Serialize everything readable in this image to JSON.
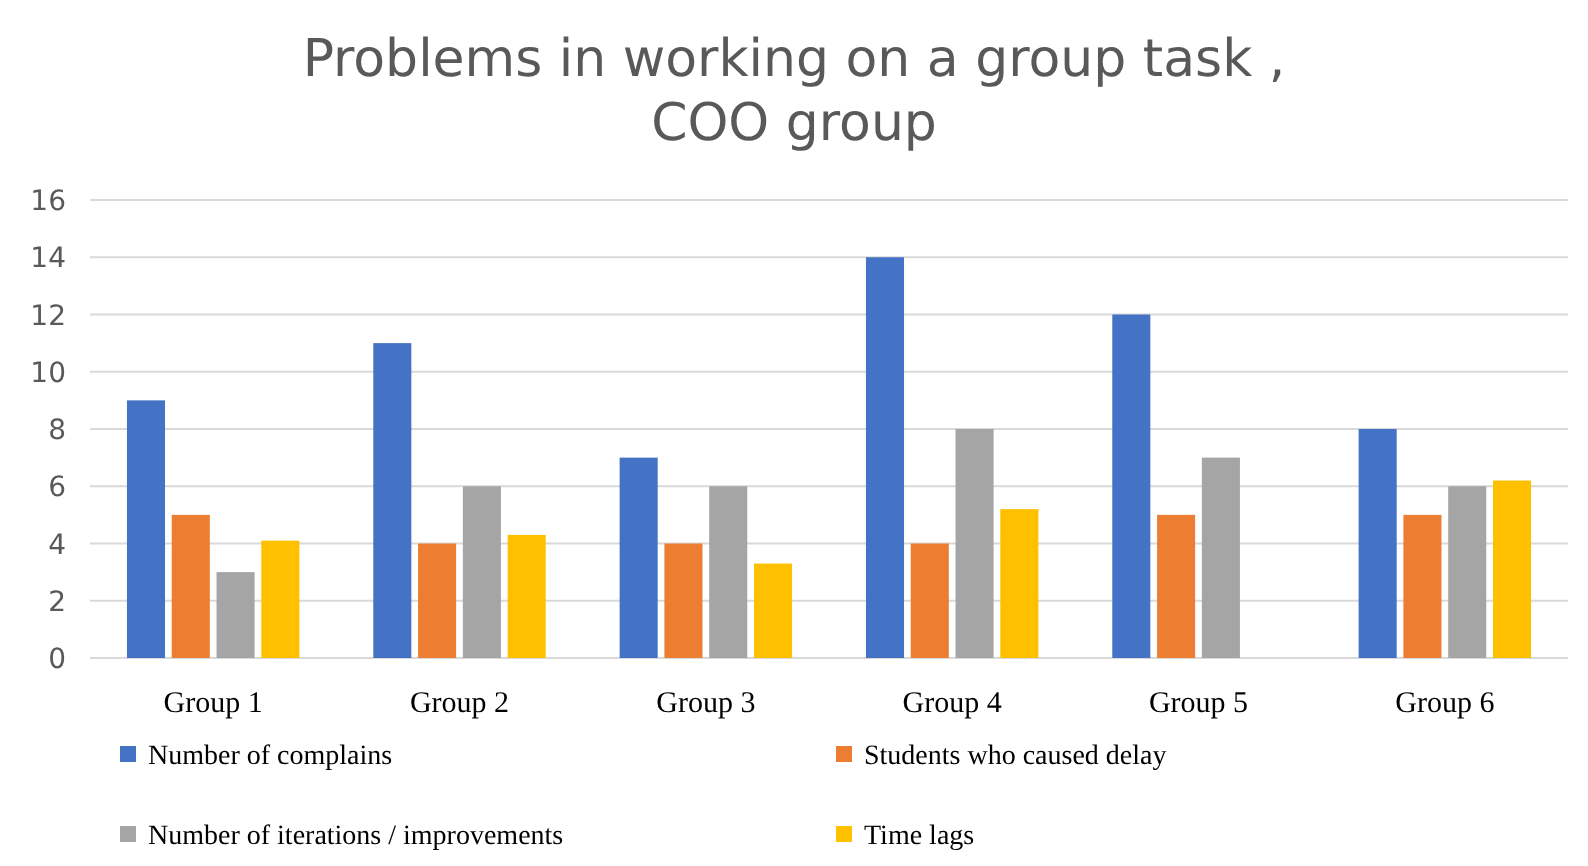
{
  "chart_data": {
    "type": "bar",
    "title": "Problems in working on a group task ,\nCOO group",
    "categories": [
      "Group 1",
      "Group 2",
      "Group 3",
      "Group 4",
      "Group 5",
      "Group 6"
    ],
    "series": [
      {
        "name": "Number of complains",
        "color": "#4472c4",
        "values": [
          9,
          11,
          7,
          14,
          12,
          8
        ]
      },
      {
        "name": "Students who caused delay",
        "color": "#ed7d31",
        "values": [
          5,
          4,
          4,
          4,
          5,
          5
        ]
      },
      {
        "name": "Number of iterations / improvements",
        "color": "#a5a5a5",
        "values": [
          3,
          6,
          6,
          8,
          7,
          6
        ]
      },
      {
        "name": "Time lags",
        "color": "#ffc000",
        "values": [
          4.1,
          4.3,
          3.3,
          5.2,
          null,
          6.2
        ]
      }
    ],
    "ylim": [
      0,
      16
    ],
    "yticks": [
      0,
      2,
      4,
      6,
      8,
      10,
      12,
      14,
      16
    ],
    "grid": "y",
    "legend": "bottom"
  }
}
